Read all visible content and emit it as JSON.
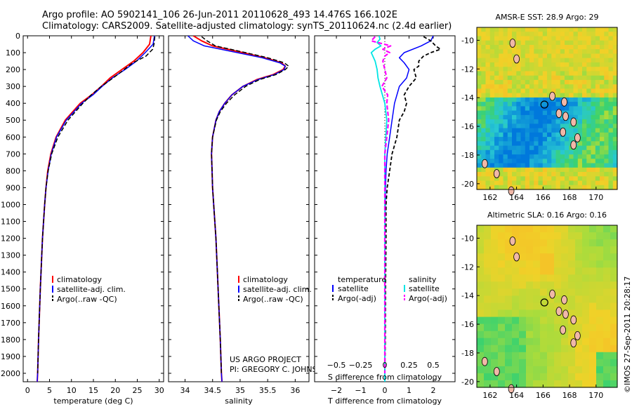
{
  "header": {
    "line1": "Argo profile: AO 5902141_106 26-Jun-2011 20110628_493 14.476S 166.102E",
    "line2": "Climatology: CARS2009. Satellite-adjusted climatology: synTS_20110624.nc (2.4d earlier)"
  },
  "footer_stamp": "©IMOS 27-Sep-2011 20:28:17",
  "colors": {
    "climatology": "#ff0000",
    "satellite": "#0000ff",
    "argo": "#000000",
    "sal_sat": "#00e5e5",
    "sal_argo": "#ff00ff"
  },
  "chart_data": [
    {
      "type": "line",
      "id": "temperature",
      "xlabel": "temperature (deg C)",
      "xlim": [
        -1,
        31
      ],
      "xticks": [
        0,
        5,
        10,
        15,
        20,
        25,
        30
      ],
      "xtick_labels": [
        "0",
        "5",
        "10",
        "15",
        "20",
        "25",
        "30"
      ],
      "ylim": [
        0,
        2050
      ],
      "yticks": [
        0,
        100,
        200,
        300,
        400,
        500,
        600,
        700,
        800,
        900,
        1000,
        1100,
        1200,
        1300,
        1400,
        1500,
        1600,
        1700,
        1800,
        1900,
        2000
      ],
      "ytick_labels": [
        "0",
        "100",
        "200",
        "300",
        "400",
        "500",
        "600",
        "700",
        "800",
        "900",
        "1000",
        "1100",
        "1200",
        "1300",
        "1400",
        "1500",
        "1600",
        "1700",
        "1800",
        "1900",
        "2000"
      ],
      "legend": [
        "climatology",
        "satellite-adj. clim.",
        "Argo(..raw -QC)"
      ],
      "series": [
        {
          "name": "climatology",
          "depth": [
            0,
            50,
            100,
            150,
            200,
            250,
            300,
            350,
            400,
            500,
            600,
            700,
            800,
            900,
            1000,
            1200,
            1500,
            1800,
            2000,
            2050
          ],
          "values": [
            28.1,
            27.8,
            26.3,
            24.2,
            21.5,
            18.8,
            16.8,
            14.6,
            12.0,
            8.6,
            6.5,
            5.3,
            4.6,
            4.2,
            3.9,
            3.4,
            2.9,
            2.5,
            2.3,
            2.2
          ]
        },
        {
          "name": "satellite-adj. clim.",
          "depth": [
            0,
            50,
            100,
            150,
            200,
            250,
            300,
            350,
            400,
            500,
            600,
            700,
            800,
            900,
            1000,
            1200,
            1500,
            1800,
            2000,
            2050
          ],
          "values": [
            28.9,
            28.6,
            26.8,
            24.8,
            22.2,
            19.3,
            17.0,
            14.9,
            12.3,
            8.8,
            6.6,
            5.4,
            4.7,
            4.2,
            3.9,
            3.4,
            2.9,
            2.5,
            2.3,
            2.2
          ]
        },
        {
          "name": "Argo(..raw -QC)",
          "depth": [
            5,
            50,
            80,
            120,
            160,
            200,
            250,
            300,
            350,
            400,
            500,
            600,
            700,
            800,
            900,
            1000,
            1200,
            1500,
            1800,
            2000
          ],
          "values": [
            29.0,
            28.8,
            28.5,
            27.0,
            24.0,
            22.0,
            19.5,
            16.8,
            14.5,
            12.6,
            9.2,
            6.9,
            5.5,
            4.7,
            4.2,
            3.9,
            3.4,
            2.9,
            2.5,
            2.3
          ]
        }
      ]
    },
    {
      "type": "line",
      "id": "salinity",
      "xlabel": "salinity",
      "xlim": [
        33.7,
        36.25
      ],
      "xticks": [
        34,
        34.5,
        35,
        35.5,
        36
      ],
      "xtick_labels": [
        "34",
        "34.5",
        "35",
        "35.5",
        "36"
      ],
      "ylim": [
        0,
        2050
      ],
      "legend": [
        "climatology",
        "satellite-adj. clim.",
        "Argo(..raw -QC)"
      ],
      "annotation": [
        "US ARGO PROJECT",
        "PI: GREGORY C. JOHNSON"
      ],
      "series": [
        {
          "name": "climatology",
          "depth": [
            0,
            30,
            60,
            100,
            130,
            160,
            180,
            200,
            230,
            260,
            300,
            350,
            400,
            450,
            500,
            600,
            700,
            800,
            900,
            1000,
            1200,
            1500,
            1800,
            2000,
            2050
          ],
          "values": [
            34.15,
            34.3,
            34.5,
            35.05,
            35.45,
            35.75,
            35.82,
            35.78,
            35.6,
            35.3,
            35.05,
            34.85,
            34.72,
            34.62,
            34.56,
            34.5,
            34.48,
            34.49,
            34.5,
            34.52,
            34.56,
            34.6,
            34.64,
            34.66,
            34.67
          ]
        },
        {
          "name": "satellite-adj. clim.",
          "depth": [
            0,
            30,
            60,
            100,
            130,
            160,
            180,
            200,
            230,
            260,
            300,
            350,
            400,
            450,
            500,
            600,
            700,
            800,
            900,
            1000,
            1200,
            1500,
            1800,
            2000,
            2050
          ],
          "values": [
            34.05,
            34.15,
            34.35,
            34.95,
            35.4,
            35.72,
            35.82,
            35.8,
            35.62,
            35.32,
            35.05,
            34.85,
            34.72,
            34.62,
            34.56,
            34.5,
            34.48,
            34.49,
            34.5,
            34.52,
            34.56,
            34.6,
            34.64,
            34.66,
            34.67
          ]
        },
        {
          "name": "Argo(..raw -QC)",
          "depth": [
            5,
            30,
            60,
            100,
            130,
            160,
            180,
            200,
            230,
            260,
            300,
            350,
            400,
            450,
            500,
            600,
            700,
            800,
            900,
            1000,
            1200,
            1500,
            1800,
            2000
          ],
          "values": [
            34.3,
            34.4,
            34.55,
            35.1,
            35.5,
            35.8,
            35.88,
            35.82,
            35.65,
            35.35,
            35.1,
            34.9,
            34.75,
            34.64,
            34.57,
            34.5,
            34.48,
            34.49,
            34.5,
            34.52,
            34.56,
            34.6,
            34.64,
            34.66
          ]
        }
      ]
    },
    {
      "type": "line",
      "id": "differences",
      "xlabel_top": "S difference from climatology",
      "xlabel": "T difference from climatology",
      "xlim": [
        -2.9,
        2.9
      ],
      "xticks": [
        -2,
        -1,
        0,
        1,
        2
      ],
      "xtick_labels": [
        "−2",
        "−1",
        "0",
        "1",
        "2"
      ],
      "xticks_s": [
        -0.5,
        -0.25,
        0,
        0.25,
        0.5
      ],
      "xtick_labels_s": [
        "−0.5",
        "−0.25",
        "0",
        "0.25",
        "0.5"
      ],
      "ylim": [
        0,
        2050
      ],
      "legend_t": [
        "temperature",
        "satellite",
        "Argo(-adj)"
      ],
      "legend_s": [
        "salinity",
        "satellite",
        "Argo(-adj)"
      ],
      "series": [
        {
          "name": "T satellite",
          "depth": [
            0,
            30,
            60,
            100,
            130,
            160,
            200,
            250,
            300,
            400,
            500,
            600,
            700,
            800,
            900,
            1000,
            1200,
            1500,
            1800,
            2000,
            2050
          ],
          "values": [
            2.0,
            1.9,
            1.5,
            0.8,
            0.6,
            0.8,
            1.0,
            0.9,
            0.6,
            0.4,
            0.3,
            0.2,
            0.1,
            0.05,
            0.03,
            0.02,
            0.0,
            0.0,
            0.0,
            0.0,
            0.0
          ]
        },
        {
          "name": "T Argo(-adj)",
          "depth": [
            5,
            30,
            60,
            80,
            100,
            120,
            150,
            180,
            200,
            250,
            300,
            350,
            400,
            450,
            500,
            600,
            700,
            800,
            900,
            1000,
            1200,
            1500,
            1800,
            2000
          ],
          "values": [
            1.6,
            1.9,
            2.1,
            2.3,
            1.9,
            1.6,
            1.4,
            1.4,
            1.2,
            1.3,
            1.0,
            0.8,
            0.9,
            0.8,
            0.6,
            0.5,
            0.3,
            0.2,
            0.1,
            0.05,
            0.05,
            0.03,
            0.02,
            0.0
          ]
        },
        {
          "name": "S satellite",
          "depth": [
            0,
            20,
            40,
            60,
            80,
            100,
            150,
            200,
            250,
            300,
            400,
            500,
            600,
            700,
            800,
            900,
            1000,
            1100,
            1200,
            1500,
            1800,
            2000,
            2050
          ],
          "values": [
            -0.06,
            -0.05,
            -0.08,
            -0.04,
            -0.1,
            -0.14,
            -0.1,
            -0.08,
            -0.07,
            -0.05,
            0.0,
            0.02,
            0.01,
            0.0,
            0.0,
            0.0,
            0.0,
            0.0,
            0.0,
            0.0,
            0.0,
            0.0,
            0.0
          ]
        },
        {
          "name": "S Argo(-adj)",
          "depth": [
            5,
            30,
            60,
            80,
            100,
            120,
            150,
            200,
            250,
            300,
            350,
            400,
            500,
            600,
            700,
            800,
            900,
            1000,
            1100,
            1200,
            1500,
            1800,
            2000
          ],
          "values": [
            -0.1,
            -0.14,
            0.06,
            -0.02,
            0.05,
            0.0,
            -0.02,
            0.0,
            0.02,
            -0.03,
            0.03,
            0.02,
            0.04,
            0.02,
            0.0,
            0.0,
            0.0,
            0.0,
            0.0,
            0.0,
            0.0,
            0.0,
            0.0
          ]
        }
      ]
    }
  ],
  "maps": [
    {
      "title": "AMSR-E SST: 28.9 Argo: 29",
      "yticks": [
        -10,
        -12,
        -14,
        -16,
        -18,
        -20
      ],
      "ytick_labels": [
        "-10",
        "-12",
        "-14",
        "-16",
        "-18",
        "-20"
      ],
      "xticks": [
        162,
        164,
        166,
        168,
        170
      ],
      "xtick_labels": [
        "162",
        "164",
        "166",
        "168",
        "170"
      ],
      "argo_marker": {
        "lon": 166.1,
        "lat": -14.48
      }
    },
    {
      "title": "Altimetric SLA: 0.16 Argo: 0.16",
      "yticks": [
        -10,
        -12,
        -14,
        -16,
        -18,
        -20
      ],
      "ytick_labels": [
        "-10",
        "-12",
        "-14",
        "-16",
        "-18",
        "-20"
      ],
      "xticks": [
        162,
        164,
        166,
        168,
        170
      ],
      "xtick_labels": [
        "162",
        "164",
        "166",
        "168",
        "170"
      ],
      "argo_marker": {
        "lon": 166.1,
        "lat": -14.48
      }
    }
  ]
}
